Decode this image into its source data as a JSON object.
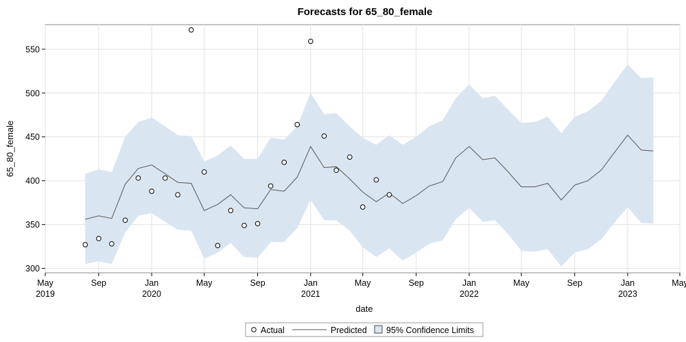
{
  "chart_data": {
    "type": "line",
    "title": "Forecasts for 65_80_female",
    "xlabel": "date",
    "ylabel": "65_80_female",
    "ylim": [
      295,
      578
    ],
    "xlim": [
      "2019-05-01",
      "2023-05-01"
    ],
    "yticks": [
      300,
      350,
      400,
      450,
      500,
      550
    ],
    "xticks": [
      {
        "date": "2019-05-01",
        "label": "May",
        "year": "2019"
      },
      {
        "date": "2019-09-01",
        "label": "Sep",
        "year": ""
      },
      {
        "date": "2020-01-01",
        "label": "Jan",
        "year": "2020"
      },
      {
        "date": "2020-05-01",
        "label": "May",
        "year": ""
      },
      {
        "date": "2020-09-01",
        "label": "Sep",
        "year": ""
      },
      {
        "date": "2021-01-01",
        "label": "Jan",
        "year": "2021"
      },
      {
        "date": "2021-05-01",
        "label": "May",
        "year": ""
      },
      {
        "date": "2021-09-01",
        "label": "Sep",
        "year": ""
      },
      {
        "date": "2022-01-01",
        "label": "Jan",
        "year": "2022"
      },
      {
        "date": "2022-05-01",
        "label": "May",
        "year": ""
      },
      {
        "date": "2022-09-01",
        "label": "Sep",
        "year": ""
      },
      {
        "date": "2023-01-01",
        "label": "Jan",
        "year": "2023"
      },
      {
        "date": "2023-05-01",
        "label": "May",
        "year": ""
      }
    ],
    "grid": true,
    "legend_position": "bottom-center",
    "colors": {
      "band": "#dae5f2",
      "line": "#555555",
      "marker": "#000000",
      "grid": "#e1e1e1"
    },
    "x": [
      "2019-08-01",
      "2019-09-01",
      "2019-10-01",
      "2019-11-01",
      "2019-12-01",
      "2020-01-01",
      "2020-02-01",
      "2020-03-01",
      "2020-04-01",
      "2020-05-01",
      "2020-06-01",
      "2020-07-01",
      "2020-08-01",
      "2020-09-01",
      "2020-10-01",
      "2020-11-01",
      "2020-12-01",
      "2021-01-01",
      "2021-02-01",
      "2021-03-01",
      "2021-04-01",
      "2021-05-01",
      "2021-06-01",
      "2021-07-01",
      "2021-08-01",
      "2021-09-01",
      "2021-10-01",
      "2021-11-01",
      "2021-12-01",
      "2022-01-01",
      "2022-02-01",
      "2022-03-01",
      "2022-04-01",
      "2022-05-01",
      "2022-06-01",
      "2022-07-01",
      "2022-08-01",
      "2022-09-01",
      "2022-10-01",
      "2022-11-01",
      "2022-12-01",
      "2023-01-01",
      "2023-02-01",
      "2023-03-01"
    ],
    "series": [
      {
        "name": "Actual",
        "kind": "marker",
        "values": [
          327,
          334,
          328,
          355,
          403,
          388,
          403,
          384,
          572,
          410,
          326,
          366,
          349,
          351,
          394,
          421,
          464,
          559,
          451,
          412,
          427,
          370,
          401,
          384,
          null,
          null,
          null,
          null,
          null,
          null,
          null,
          null,
          null,
          null,
          null,
          null,
          null,
          null,
          null,
          null,
          null,
          null,
          null,
          null
        ]
      },
      {
        "name": "Predicted",
        "kind": "line",
        "values": [
          356,
          360,
          357,
          396,
          414,
          418,
          408,
          398,
          397,
          366,
          373,
          384,
          369,
          368,
          390,
          388,
          404,
          439,
          415,
          416,
          402,
          387,
          376,
          386,
          374,
          383,
          394,
          399,
          426,
          439,
          424,
          426,
          410,
          393,
          393,
          397,
          378,
          395,
          400,
          412,
          432,
          452,
          435,
          434
        ]
      },
      {
        "name": "95% Confidence Limits",
        "kind": "band",
        "lower": [
          305,
          308,
          305,
          341,
          360,
          363,
          353,
          344,
          343,
          311,
          318,
          329,
          313,
          312,
          330,
          330,
          346,
          378,
          355,
          355,
          343,
          324,
          313,
          323,
          309,
          318,
          328,
          332,
          356,
          369,
          353,
          355,
          339,
          320,
          319,
          322,
          302,
          318,
          322,
          333,
          352,
          370,
          352,
          351
        ],
        "upper": [
          408,
          413,
          410,
          450,
          467,
          472,
          462,
          452,
          451,
          422,
          429,
          440,
          425,
          425,
          449,
          447,
          462,
          500,
          476,
          477,
          462,
          449,
          441,
          452,
          441,
          450,
          462,
          469,
          494,
          510,
          494,
          497,
          481,
          466,
          467,
          473,
          454,
          473,
          479,
          491,
          512,
          533,
          517,
          518
        ]
      }
    ]
  }
}
